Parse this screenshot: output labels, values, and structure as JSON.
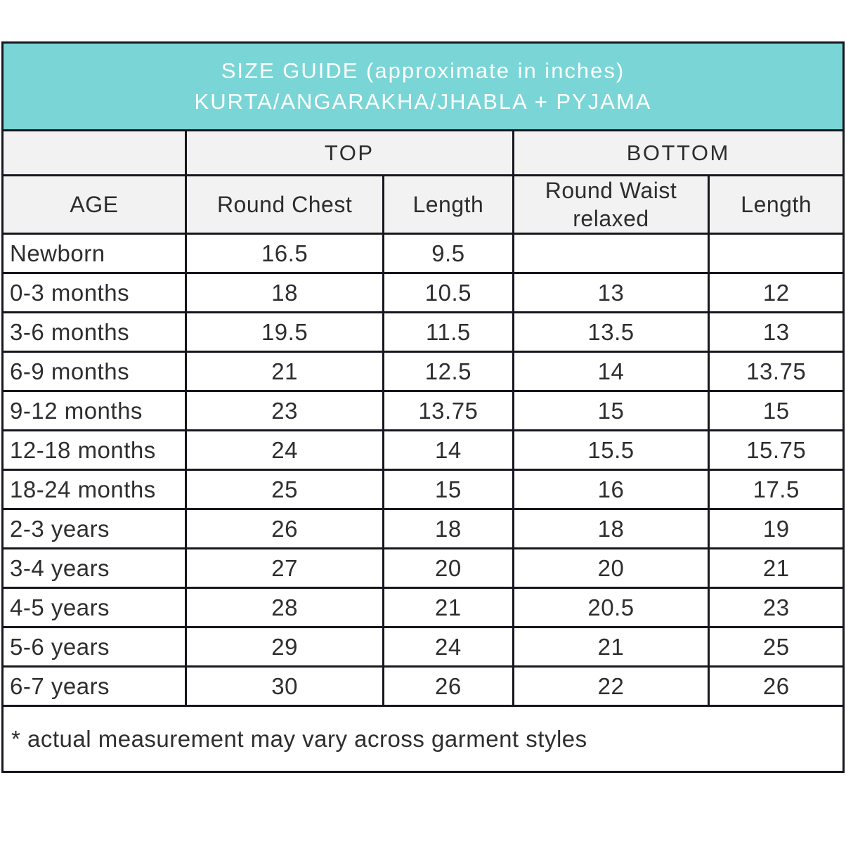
{
  "banner": {
    "line1": "SIZE GUIDE (approximate in inches)",
    "line2": "KURTA/ANGARAKHA/JHABLA + PYJAMA"
  },
  "chart_data": {
    "type": "table",
    "title": "SIZE GUIDE (approximate in inches) KURTA/ANGARAKHA/JHABLA + PYJAMA",
    "column_groups": [
      "TOP",
      "BOTTOM"
    ],
    "columns": [
      "AGE",
      "Round Chest",
      "Length",
      "Round Waist relaxed",
      "Length"
    ],
    "rows": [
      [
        "Newborn",
        "16.5",
        "9.5",
        "",
        ""
      ],
      [
        "0-3 months",
        "18",
        "10.5",
        "13",
        "12"
      ],
      [
        "3-6 months",
        "19.5",
        "11.5",
        "13.5",
        "13"
      ],
      [
        "6-9 months",
        "21",
        "12.5",
        "14",
        "13.75"
      ],
      [
        "9-12 months",
        "23",
        "13.75",
        "15",
        "15"
      ],
      [
        "12-18 months",
        "24",
        "14",
        "15.5",
        "15.75"
      ],
      [
        "18-24 months",
        "25",
        "15",
        "16",
        "17.5"
      ],
      [
        "2-3 years",
        "26",
        "18",
        "18",
        "19"
      ],
      [
        "3-4 years",
        "27",
        "20",
        "20",
        "21"
      ],
      [
        "4-5 years",
        "28",
        "21",
        "20.5",
        "23"
      ],
      [
        "5-6 years",
        "29",
        "24",
        "21",
        "25"
      ],
      [
        "6-7 years",
        "30",
        "26",
        "22",
        "26"
      ]
    ],
    "footnote": "* actual measurement may vary across garment styles",
    "units": "inches"
  },
  "colors": {
    "accent_teal": "#7ad6d6",
    "header_gray": "#f2f2f2",
    "border_dark": "#16161f",
    "text_dark": "#2e2e2e",
    "banner_text": "#ffffff"
  }
}
